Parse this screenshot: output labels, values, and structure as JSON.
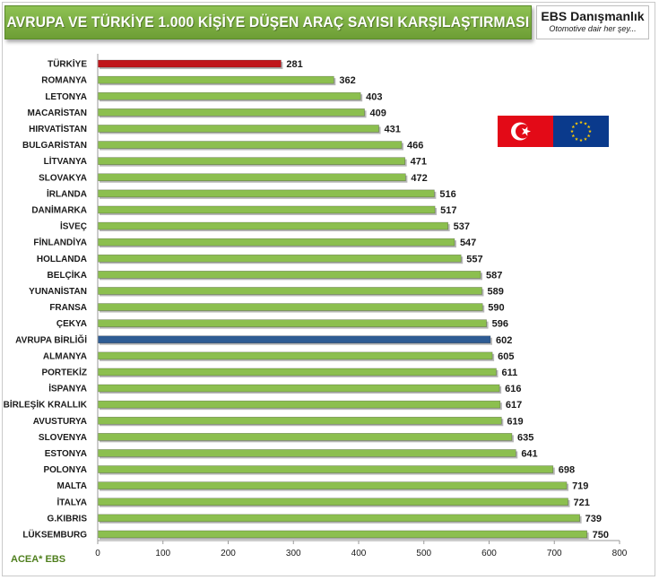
{
  "header": {
    "title": "AVRUPA VE TÜRKİYE 1.000  KİŞİYE DÜŞEN ARAÇ SAYISI KARŞILAŞTIRMASI",
    "brand_name": "EBS Danışmanlık",
    "brand_slogan": "Otomotive dair her şey..."
  },
  "footer": {
    "source": "ACEA* EBS"
  },
  "colors": {
    "bar_default": "#8cbf4f",
    "bar_turkey": "#c0161b",
    "bar_eu": "#2e5c94",
    "title_banner": "#7db043"
  },
  "icons": {
    "flag_left": "turkey-flag-icon",
    "flag_right": "eu-flag-icon"
  },
  "chart_data": {
    "type": "bar",
    "orientation": "horizontal",
    "title": "AVRUPA VE TÜRKİYE 1.000  KİŞİYE DÜŞEN ARAÇ SAYISI KARŞILAŞTIRMASI",
    "xlabel": "",
    "ylabel": "",
    "xlim": [
      0,
      800
    ],
    "xticks": [
      0,
      100,
      200,
      300,
      400,
      500,
      600,
      700,
      800
    ],
    "grid": false,
    "categories": [
      "TÜRKİYE",
      "ROMANYA",
      "LETONYA",
      "MACARİSTAN",
      "HIRVATİSTAN",
      "BULGARİSTAN",
      "LİTVANYA",
      "SLOVAKYA",
      "İRLANDA",
      "DANİMARKA",
      "İSVEÇ",
      "FİNLANDİYA",
      "HOLLANDA",
      "BELÇİKA",
      "YUNANİSTAN",
      "FRANSA",
      "ÇEKYA",
      "AVRUPA BİRLİĞİ",
      "ALMANYA",
      "PORTEKİZ",
      "İSPANYA",
      "BİRLEŞİK KRALLIK",
      "AVUSTURYA",
      "SLOVENYA",
      "ESTONYA",
      "POLONYA",
      "MALTA",
      "İTALYA",
      "G.KIBRIS",
      "LÜKSEMBURG"
    ],
    "values": [
      281,
      362,
      403,
      409,
      431,
      466,
      471,
      472,
      516,
      517,
      537,
      547,
      557,
      587,
      589,
      590,
      596,
      602,
      605,
      611,
      616,
      617,
      619,
      635,
      641,
      698,
      719,
      721,
      739,
      750
    ],
    "highlight": {
      "TÜRKİYE": "bar_turkey",
      "AVRUPA BİRLİĞİ": "bar_eu"
    }
  }
}
